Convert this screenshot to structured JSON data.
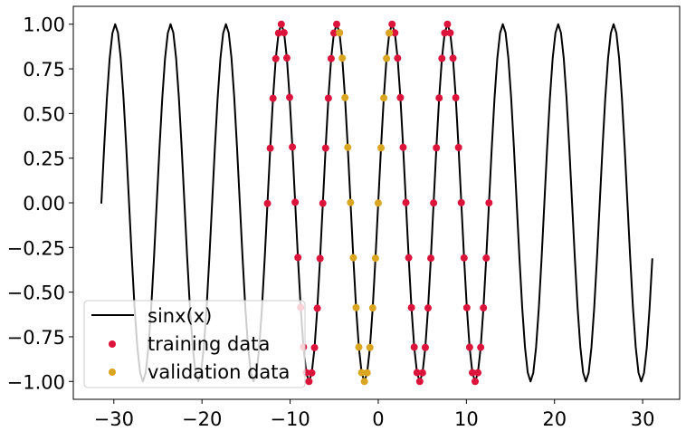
{
  "chart_data": {
    "type": "scatter",
    "title": "",
    "xlabel": "",
    "ylabel": "",
    "xlim": [
      -34.6,
      34.2
    ],
    "ylim": [
      -1.1,
      1.1
    ],
    "xticks": [
      -30,
      -20,
      -10,
      0,
      10,
      20,
      30
    ],
    "xtick_labels": [
      "−30",
      "−20",
      "−10",
      "0",
      "10",
      "20",
      "30"
    ],
    "yticks": [
      1.0,
      0.75,
      0.5,
      0.25,
      0.0,
      -0.25,
      -0.5,
      -0.75,
      -1.0
    ],
    "ytick_labels": [
      "1.00",
      "0.75",
      "0.50",
      "0.25",
      "0.00",
      "−0.25",
      "−0.50",
      "−0.75",
      "−1.00"
    ],
    "grid": false,
    "legend_position": "bottom-left",
    "series": [
      {
        "name": "sinx(x)",
        "kind": "line",
        "color": "#000000",
        "x_start": -31.42,
        "x_end": 31.1,
        "n_points": 200,
        "function": "sin"
      },
      {
        "name": "training data",
        "kind": "scatter",
        "color": "#dc143c",
        "x_start": -12.57,
        "x_end": 12.57,
        "step": 0.3142,
        "function": "sin",
        "exclude_x_range": [
          -4.4,
          1.2
        ]
      },
      {
        "name": "validation data",
        "kind": "scatter",
        "color": "#daa520",
        "x_start": -4.4,
        "x_end": 1.2,
        "step": 0.3142,
        "function": "sin"
      }
    ]
  }
}
